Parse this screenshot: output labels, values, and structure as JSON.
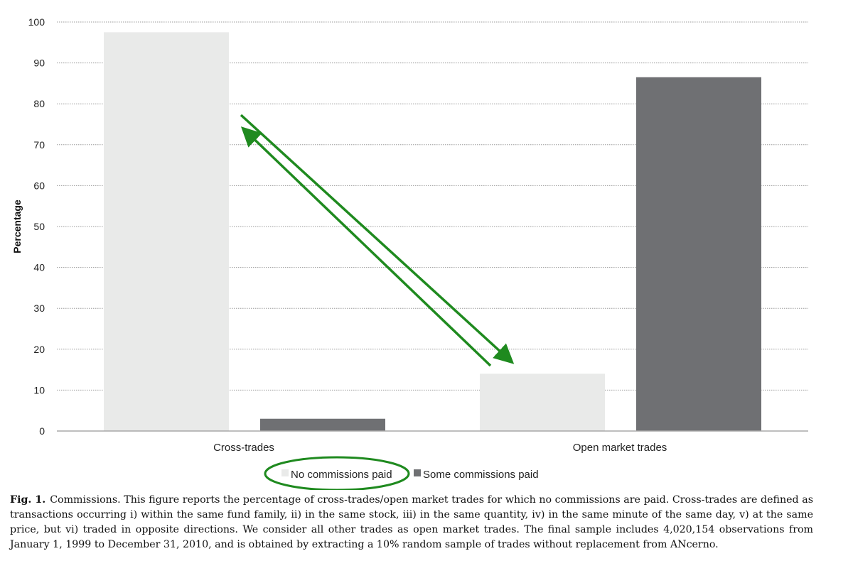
{
  "chart_data": {
    "type": "bar",
    "categories": [
      "Cross-trades",
      "Open market trades"
    ],
    "series": [
      {
        "name": "No commissions paid",
        "values": [
          97.5,
          14
        ],
        "color": "#e9eae9"
      },
      {
        "name": "Some commissions paid",
        "values": [
          3,
          86.5
        ],
        "color": "#6f7073"
      }
    ],
    "ylabel": "Percentage",
    "ylim": [
      0,
      100
    ],
    "yticks": [
      0,
      10,
      20,
      30,
      40,
      50,
      60,
      70,
      80,
      90,
      100
    ],
    "grid": true,
    "legend": "bottom-center",
    "annotations": [
      {
        "type": "double-arrow",
        "color": "#1f8a1f",
        "description": "arrows between the cross-trades and open market trades bars"
      },
      {
        "type": "ellipse-highlight",
        "color": "#1f8a1f",
        "target": "No commissions paid"
      }
    ]
  },
  "caption": {
    "label": "Fig. 1.",
    "text": "Commissions. This figure reports the percentage of cross-trades/open market trades for which no commissions are paid. Cross-trades are defined as transactions occurring i) within the same fund family, ii) in the same stock, iii) in the same quantity, iv) in the same minute of the same day, v) at the same price, but vi) traded in opposite directions. We consider all other trades as open market trades. The final sample includes 4,020,154 observations from January 1, 1999 to December 31, 2010, and is obtained by extracting a 10% random sample of trades without replacement from ANcerno."
  }
}
